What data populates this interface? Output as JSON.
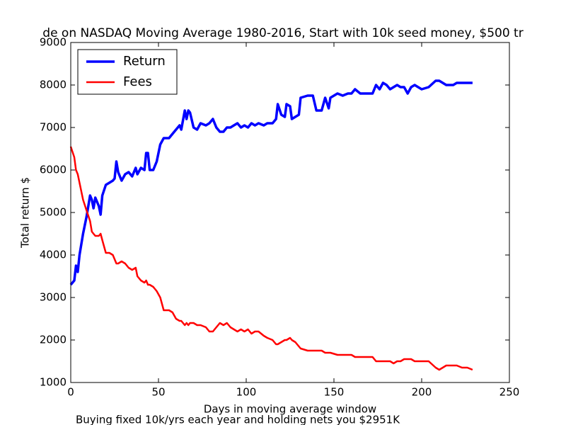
{
  "chart_data": {
    "type": "line",
    "title": "de on NASDAQ Moving Average 1980-2016, Start with 10k seed money, $500 tr",
    "xlabel": "Days in moving average window",
    "ylabel": "Total return $",
    "footnote": "Buying fixed 10k/yrs each year and holding nets you $2951K",
    "x": [
      0,
      2,
      3,
      4,
      5,
      7,
      9,
      11,
      12,
      13,
      14,
      16,
      17,
      18,
      20,
      22,
      24,
      25,
      26,
      27,
      29,
      31,
      33,
      35,
      37,
      38,
      40,
      42,
      43,
      44,
      45,
      47,
      49,
      51,
      53,
      56,
      58,
      60,
      62,
      63,
      65,
      66,
      67,
      68,
      70,
      72,
      74,
      77,
      79,
      81,
      83,
      85,
      87,
      89,
      91,
      93,
      95,
      97,
      99,
      101,
      103,
      105,
      107,
      110,
      112,
      115,
      117,
      118,
      120,
      122,
      123,
      125,
      126,
      128,
      130,
      131,
      135,
      138,
      140,
      143,
      145,
      147,
      148,
      152,
      155,
      158,
      160,
      162,
      165,
      168,
      172,
      174,
      176,
      178,
      180,
      182,
      184,
      186,
      188,
      190,
      192,
      194,
      196,
      198,
      200,
      204,
      208,
      210,
      212,
      214,
      216,
      218,
      220,
      223,
      226,
      229
    ],
    "series": [
      {
        "name": "Return",
        "color": "#0000ff",
        "linewidth": 3.5,
        "values": [
          3300,
          3400,
          3750,
          3600,
          4000,
          4500,
          4900,
          5400,
          5300,
          5100,
          5350,
          5150,
          4950,
          5400,
          5650,
          5700,
          5750,
          5800,
          6200,
          5950,
          5750,
          5900,
          5950,
          5850,
          6050,
          5900,
          6050,
          6000,
          6400,
          6400,
          6000,
          6000,
          6200,
          6600,
          6750,
          6750,
          6850,
          6950,
          7050,
          6950,
          7400,
          7200,
          7400,
          7350,
          7000,
          6950,
          7100,
          7050,
          7100,
          7200,
          7000,
          6900,
          6900,
          7000,
          7000,
          7050,
          7100,
          7000,
          7050,
          7000,
          7100,
          7050,
          7100,
          7050,
          7100,
          7100,
          7200,
          7550,
          7300,
          7250,
          7550,
          7500,
          7200,
          7250,
          7300,
          7700,
          7750,
          7750,
          7400,
          7400,
          7700,
          7450,
          7700,
          7800,
          7750,
          7800,
          7800,
          7900,
          7800,
          7800,
          7800,
          8000,
          7900,
          8050,
          8000,
          7900,
          7950,
          8000,
          7950,
          7950,
          7800,
          7950,
          8000,
          7950,
          7900,
          7950,
          8100,
          8100,
          8050,
          8000,
          8000,
          8000,
          8050,
          8050,
          8050,
          8050
        ]
      },
      {
        "name": "Fees",
        "color": "#ff0000",
        "linewidth": 2.5,
        "values": [
          6550,
          6300,
          6000,
          5900,
          5700,
          5300,
          5050,
          4800,
          4550,
          4500,
          4450,
          4450,
          4500,
          4350,
          4050,
          4050,
          4000,
          3900,
          3800,
          3800,
          3850,
          3800,
          3700,
          3650,
          3700,
          3500,
          3400,
          3350,
          3400,
          3300,
          3300,
          3250,
          3150,
          3000,
          2700,
          2700,
          2650,
          2500,
          2450,
          2450,
          2350,
          2400,
          2350,
          2400,
          2400,
          2350,
          2350,
          2300,
          2200,
          2200,
          2300,
          2400,
          2350,
          2400,
          2300,
          2250,
          2200,
          2250,
          2200,
          2250,
          2150,
          2200,
          2200,
          2100,
          2050,
          2000,
          1900,
          1900,
          1950,
          2000,
          2000,
          2050,
          2000,
          1950,
          1850,
          1800,
          1750,
          1750,
          1750,
          1750,
          1700,
          1700,
          1700,
          1650,
          1650,
          1650,
          1650,
          1600,
          1600,
          1600,
          1600,
          1500,
          1500,
          1500,
          1500,
          1500,
          1450,
          1500,
          1500,
          1550,
          1550,
          1550,
          1500,
          1500,
          1500,
          1500,
          1350,
          1300,
          1350,
          1400,
          1400,
          1400,
          1400,
          1350,
          1350,
          1300
        ]
      }
    ],
    "xlim": [
      0,
      250
    ],
    "xticks": [
      0,
      50,
      100,
      150,
      200,
      250
    ],
    "ylim": [
      1000,
      9000
    ],
    "yticks": [
      1000,
      2000,
      3000,
      4000,
      5000,
      6000,
      7000,
      8000,
      9000
    ],
    "grid": false,
    "legend": "upper left"
  }
}
